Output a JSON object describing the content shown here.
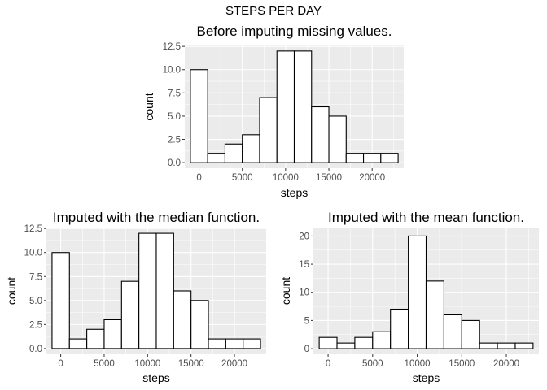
{
  "figure": {
    "title": "STEPS PER DAY"
  },
  "chart_data": [
    {
      "type": "bar",
      "title": "Before imputing missing values.",
      "xlabel": "steps",
      "ylabel": "count",
      "bin_width": 2000,
      "bin_centers": [
        0,
        2000,
        4000,
        6000,
        8000,
        10000,
        12000,
        14000,
        16000,
        18000,
        20000,
        22000
      ],
      "values": [
        10,
        1,
        2,
        3,
        7,
        12,
        12,
        6,
        5,
        1,
        1,
        1
      ],
      "xlim": [
        -1650,
        23650
      ],
      "ylim": [
        -0.6,
        12.6
      ],
      "x_ticks": [
        0,
        5000,
        10000,
        15000,
        20000
      ],
      "x_tick_labels": [
        "0",
        "5000",
        "10000",
        "15000",
        "20000"
      ],
      "y_ticks": [
        0,
        2.5,
        5,
        7.5,
        10,
        12.5
      ],
      "y_tick_labels": [
        "0.0",
        "2.5",
        "5.0",
        "7.5",
        "10.0",
        "12.5"
      ],
      "grid": true
    },
    {
      "type": "bar",
      "title": "Imputed with the median function.",
      "xlabel": "steps",
      "ylabel": "count",
      "bin_width": 2000,
      "bin_centers": [
        0,
        2000,
        4000,
        6000,
        8000,
        10000,
        12000,
        14000,
        16000,
        18000,
        20000,
        22000
      ],
      "values": [
        10,
        1,
        2,
        3,
        7,
        12,
        12,
        6,
        5,
        1,
        1,
        1
      ],
      "xlim": [
        -1650,
        23650
      ],
      "ylim": [
        -0.6,
        12.6
      ],
      "x_ticks": [
        0,
        5000,
        10000,
        15000,
        20000
      ],
      "x_tick_labels": [
        "0",
        "5000",
        "10000",
        "15000",
        "20000"
      ],
      "y_ticks": [
        0,
        2.5,
        5,
        7.5,
        10,
        12.5
      ],
      "y_tick_labels": [
        "0.0",
        "2.5",
        "5.0",
        "7.5",
        "10.0",
        "12.5"
      ],
      "grid": true
    },
    {
      "type": "bar",
      "title": "Imputed with the mean function.",
      "xlabel": "steps",
      "ylabel": "count",
      "bin_width": 2000,
      "bin_centers": [
        0,
        2000,
        4000,
        6000,
        8000,
        10000,
        12000,
        14000,
        16000,
        18000,
        20000,
        22000
      ],
      "values": [
        2,
        1,
        2,
        3,
        7,
        20,
        12,
        6,
        5,
        1,
        1,
        1
      ],
      "xlim": [
        -1650,
        23650
      ],
      "ylim": [
        -1,
        21.5
      ],
      "x_ticks": [
        0,
        5000,
        10000,
        15000,
        20000
      ],
      "x_tick_labels": [
        "0",
        "5000",
        "10000",
        "15000",
        "20000"
      ],
      "y_ticks": [
        0,
        5,
        10,
        15,
        20
      ],
      "y_tick_labels": [
        "0",
        "5",
        "10",
        "15",
        "20"
      ],
      "grid": true
    }
  ]
}
